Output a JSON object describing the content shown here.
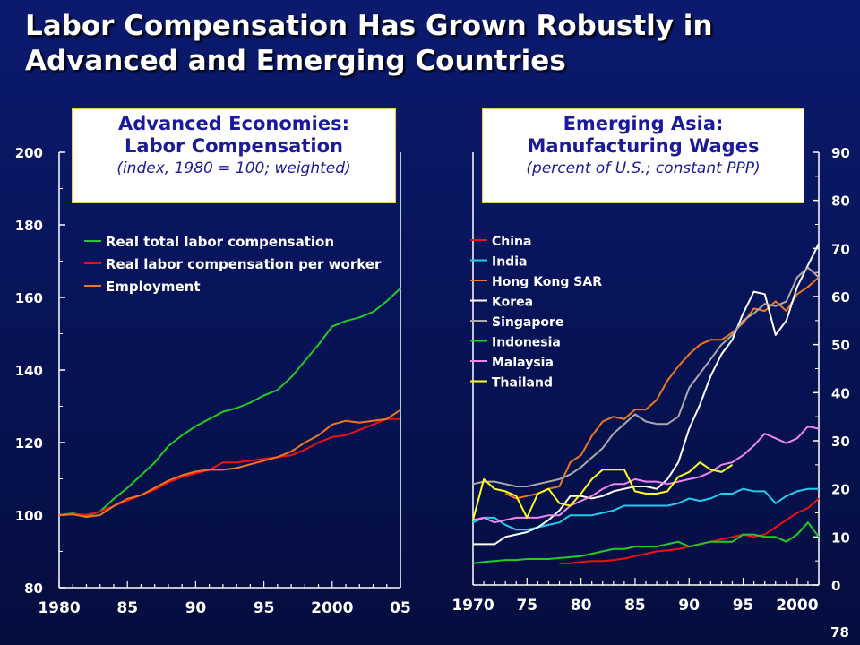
{
  "slide": {
    "title_line1": "Labor Compensation Has Grown Robustly in",
    "title_line2": "Advanced and Emerging Countries",
    "page_number": "78"
  },
  "colors": {
    "background": "#08145a",
    "text": "#ffffff",
    "box_text": "#1a1a9a"
  },
  "chart_data": [
    {
      "type": "line",
      "title": "Advanced Economies:",
      "title_line2": "Labor Compensation",
      "subtitle": "(index, 1980 = 100; weighted)",
      "ylim": [
        80,
        200
      ],
      "yticks": [
        80,
        100,
        120,
        140,
        160,
        180,
        200
      ],
      "xlim": [
        1980,
        2005
      ],
      "xticks": [
        {
          "value": 1980,
          "label": "1980"
        },
        {
          "value": 1985,
          "label": "85"
        },
        {
          "value": 1990,
          "label": "90"
        },
        {
          "value": 1995,
          "label": "95"
        },
        {
          "value": 2000,
          "label": "2000"
        },
        {
          "value": 2005,
          "label": "05"
        }
      ],
      "legend_position": "top-left",
      "x": [
        1980,
        1981,
        1982,
        1983,
        1984,
        1985,
        1986,
        1987,
        1988,
        1989,
        1990,
        1991,
        1992,
        1993,
        1994,
        1995,
        1996,
        1997,
        1998,
        1999,
        2000,
        2001,
        2002,
        2003,
        2004,
        2005
      ],
      "series": [
        {
          "name": "Real total labor compensation",
          "color": "#22cc22",
          "values": [
            100,
            100.5,
            99.8,
            101,
            104.5,
            107.5,
            111,
            114.5,
            119,
            122,
            124.5,
            126.5,
            128.5,
            129.5,
            131,
            133,
            134.5,
            138,
            142.5,
            147,
            152,
            153.5,
            154.5,
            156,
            159,
            162.5
          ]
        },
        {
          "name": "Real labor compensation per worker",
          "color": "#ee1111",
          "values": [
            100,
            100.3,
            100.1,
            101,
            102.5,
            104,
            105.5,
            107,
            109,
            110.5,
            111.5,
            112.5,
            114.5,
            114.5,
            115,
            115.5,
            116,
            116.5,
            118,
            120,
            121.5,
            122,
            123.5,
            125,
            126.5,
            126.5
          ]
        },
        {
          "name": "Employment",
          "color": "#ee7722",
          "values": [
            100,
            100.2,
            99.5,
            100,
            102.5,
            104.5,
            105.5,
            107.5,
            109.5,
            111,
            112,
            112.5,
            112.5,
            113,
            114,
            115,
            116,
            117.5,
            120,
            122,
            125,
            126,
            125.5,
            126,
            126.5,
            129
          ]
        }
      ]
    },
    {
      "type": "line",
      "title": "Emerging Asia:",
      "title_line2": "Manufacturing Wages",
      "subtitle": "(percent of U.S.; constant PPP)",
      "ylim": [
        0,
        90
      ],
      "yticks": [
        0,
        10,
        20,
        30,
        40,
        50,
        60,
        70,
        80,
        90
      ],
      "xlim": [
        1970,
        2002
      ],
      "xticks": [
        {
          "value": 1970,
          "label": "1970"
        },
        {
          "value": 1975,
          "label": "75"
        },
        {
          "value": 1980,
          "label": "80"
        },
        {
          "value": 1985,
          "label": "85"
        },
        {
          "value": 1990,
          "label": "90"
        },
        {
          "value": 1995,
          "label": "95"
        },
        {
          "value": 2000,
          "label": "2000"
        }
      ],
      "legend_position": "top-left",
      "series": [
        {
          "name": "China",
          "color": "#ee1111",
          "x": [
            1978,
            1979,
            1980,
            1981,
            1982,
            1983,
            1984,
            1985,
            1986,
            1987,
            1988,
            1989,
            1990,
            1991,
            1992,
            1993,
            1994,
            1995,
            1996,
            1997,
            1998,
            1999,
            2000,
            2001,
            2002
          ],
          "values": [
            4.5,
            4.5,
            4.8,
            5,
            5,
            5.2,
            5.5,
            6,
            6.5,
            7,
            7.2,
            7.5,
            8,
            8.5,
            9,
            9.5,
            10,
            10.5,
            10,
            10.5,
            12,
            13.5,
            15,
            16,
            18
          ]
        },
        {
          "name": "India",
          "color": "#22ccee",
          "x": [
            1970,
            1971,
            1972,
            1973,
            1974,
            1975,
            1976,
            1977,
            1978,
            1979,
            1980,
            1981,
            1982,
            1983,
            1984,
            1985,
            1986,
            1987,
            1988,
            1989,
            1990,
            1991,
            1992,
            1993,
            1994,
            1995,
            1996,
            1997,
            1998,
            1999,
            2000,
            2001,
            2002
          ],
          "values": [
            13,
            14,
            14,
            12.5,
            11.5,
            11.5,
            12,
            12.5,
            13,
            14.5,
            14.5,
            14.5,
            15,
            15.5,
            16.5,
            16.5,
            16.5,
            16.5,
            16.5,
            17,
            18,
            17.5,
            18,
            19,
            19,
            20,
            19.5,
            19.5,
            17,
            18.5,
            19.5,
            20,
            20
          ]
        },
        {
          "name": "Hong Kong SAR",
          "color": "#ee7722",
          "x": [
            1973,
            1974,
            1975,
            1976,
            1977,
            1978,
            1979,
            1980,
            1981,
            1982,
            1983,
            1984,
            1985,
            1986,
            1987,
            1988,
            1989,
            1990,
            1991,
            1992,
            1993,
            1994,
            1995,
            1996,
            1997,
            1998,
            1999,
            2000,
            2001,
            2002
          ],
          "values": [
            19,
            18,
            18.5,
            19,
            20,
            20.5,
            25.5,
            27,
            31,
            34,
            35,
            34.5,
            36.5,
            36.5,
            38.5,
            42.5,
            45.5,
            48,
            50,
            51,
            51,
            52.5,
            54.5,
            57.5,
            57,
            59,
            57,
            60.5,
            62,
            64
          ]
        },
        {
          "name": "Korea",
          "color": "#ffffff",
          "x": [
            1970,
            1971,
            1972,
            1973,
            1974,
            1975,
            1976,
            1977,
            1978,
            1979,
            1980,
            1981,
            1982,
            1983,
            1984,
            1985,
            1986,
            1987,
            1988,
            1989,
            1990,
            1991,
            1992,
            1993,
            1994,
            1995,
            1996,
            1997,
            1998,
            1999,
            2000,
            2001,
            2002
          ],
          "values": [
            8.5,
            8.5,
            8.5,
            10,
            10.5,
            11,
            12,
            13.5,
            15.5,
            18.5,
            18.5,
            18,
            18.5,
            19.5,
            20,
            20.5,
            20.5,
            20,
            22,
            25.5,
            32.5,
            37.5,
            43.5,
            48,
            51,
            56.5,
            61,
            60.5,
            52,
            55,
            62,
            66.5,
            71
          ]
        },
        {
          "name": "Singapore",
          "color": "#aaaaaa",
          "x": [
            1970,
            1971,
            1972,
            1973,
            1974,
            1975,
            1976,
            1977,
            1978,
            1979,
            1980,
            1981,
            1982,
            1983,
            1984,
            1985,
            1986,
            1987,
            1988,
            1989,
            1990,
            1991,
            1992,
            1993,
            1994,
            1995,
            1996,
            1997,
            1998,
            1999,
            2000,
            2001,
            2002
          ],
          "values": [
            21,
            21.5,
            21.5,
            21,
            20.5,
            20.5,
            21,
            21.5,
            22,
            23,
            24.5,
            26.5,
            28.5,
            31.5,
            33.5,
            35.5,
            34,
            33.5,
            33.5,
            35,
            41,
            44,
            47,
            50,
            52,
            55,
            56.5,
            58.5,
            58,
            59,
            64,
            66,
            64
          ]
        },
        {
          "name": "Indonesia",
          "color": "#22cc22",
          "x": [
            1970,
            1971,
            1972,
            1973,
            1974,
            1975,
            1976,
            1977,
            1978,
            1979,
            1980,
            1981,
            1982,
            1983,
            1984,
            1985,
            1986,
            1987,
            1988,
            1989,
            1990,
            1991,
            1992,
            1993,
            1994,
            1995,
            1996,
            1997,
            1998,
            1999,
            2000,
            2001,
            2002
          ],
          "values": [
            4.5,
            4.8,
            5,
            5.2,
            5.2,
            5.4,
            5.4,
            5.4,
            5.6,
            5.8,
            6,
            6.5,
            7,
            7.5,
            7.5,
            8,
            8,
            8,
            8.5,
            9,
            8,
            8.5,
            9,
            9,
            9,
            10.5,
            10.5,
            10,
            10,
            9,
            10.5,
            13,
            10
          ]
        },
        {
          "name": "Malaysia",
          "color": "#ee88ee",
          "x": [
            1970,
            1971,
            1972,
            1973,
            1974,
            1975,
            1976,
            1977,
            1978,
            1979,
            1980,
            1981,
            1982,
            1983,
            1984,
            1985,
            1986,
            1987,
            1988,
            1989,
            1990,
            1991,
            1992,
            1993,
            1994,
            1995,
            1996,
            1997,
            1998,
            1999,
            2000,
            2001,
            2002
          ],
          "values": [
            13.5,
            14,
            13,
            13.5,
            14,
            14,
            14,
            14.5,
            14.5,
            16.5,
            17.5,
            18.5,
            20,
            21,
            21,
            22,
            21.5,
            21.5,
            21,
            21.5,
            22,
            22.5,
            23.5,
            25,
            25.5,
            27,
            29,
            31.5,
            30.5,
            29.5,
            30.5,
            33,
            32.5
          ]
        },
        {
          "name": "Thailand",
          "color": "#ffff22",
          "x": [
            1970,
            1971,
            1972,
            1973,
            1974,
            1975,
            1976,
            1977,
            1978,
            1979,
            1980,
            1981,
            1982,
            1983,
            1984,
            1985,
            1986,
            1987,
            1988,
            1989,
            1990,
            1991,
            1992,
            1993,
            1994
          ],
          "values": [
            13.5,
            22,
            20,
            19.5,
            18.5,
            14,
            19,
            20,
            17,
            16.5,
            19,
            22,
            24,
            24,
            24,
            19.5,
            19,
            19,
            19.5,
            22.5,
            23.5,
            25.5,
            24,
            23.5,
            25
          ]
        }
      ]
    }
  ]
}
